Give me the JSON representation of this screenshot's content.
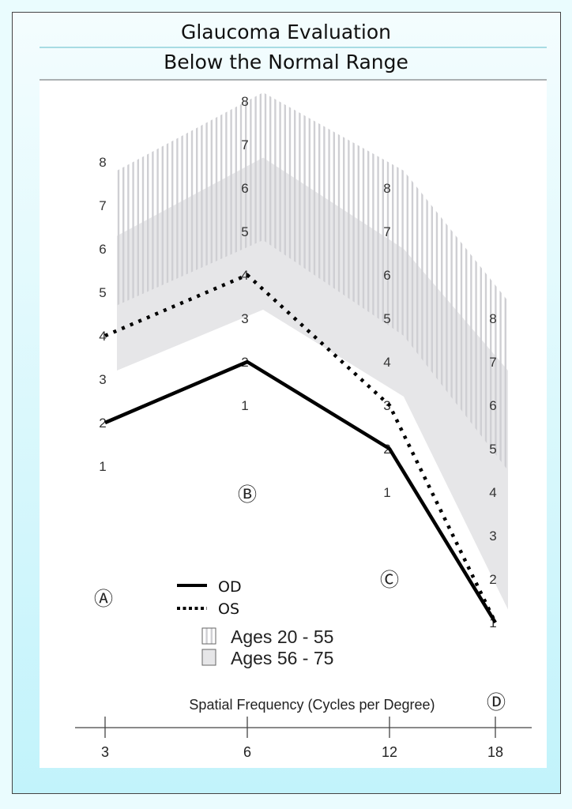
{
  "chart_data": {
    "type": "line",
    "title": "Glaucoma Evaluation",
    "subtitle": "Below the Normal Range",
    "xlabel": "Spatial Frequency (Cycles per Degree)",
    "categories": [
      "3",
      "6",
      "12",
      "18"
    ],
    "column_markers": [
      "Ⓐ",
      "Ⓑ",
      "Ⓒ",
      "Ⓓ"
    ],
    "column_scale_ticks": [
      "1",
      "2",
      "3",
      "4",
      "5",
      "6",
      "7",
      "8"
    ],
    "series": [
      {
        "name": "OD",
        "style": "solid",
        "values": [
          2,
          2,
          2,
          1
        ]
      },
      {
        "name": "OS",
        "style": "dotted",
        "values": [
          4,
          4,
          3,
          1
        ]
      }
    ],
    "bands": [
      {
        "name": "Ages 20 - 55",
        "fill": "striped",
        "lower": [
          4.7,
          4.8,
          4.6,
          4.5
        ],
        "upper": [
          7.8,
          8.2,
          8.4,
          8.4
        ]
      },
      {
        "name": "Ages 56 - 75",
        "fill": "solid",
        "lower": [
          3.2,
          3.2,
          3.2,
          1.3
        ],
        "upper": [
          6.3,
          6.7,
          6.6,
          6.8
        ]
      }
    ],
    "colors": {
      "band_fill": "#e6e6e8",
      "stripe": "#cfcfd3",
      "line": "#000000",
      "title_rule": "#7cc9d3",
      "background": "#c2f3fb"
    },
    "grid": false,
    "legend_placement": "bottom-center"
  }
}
